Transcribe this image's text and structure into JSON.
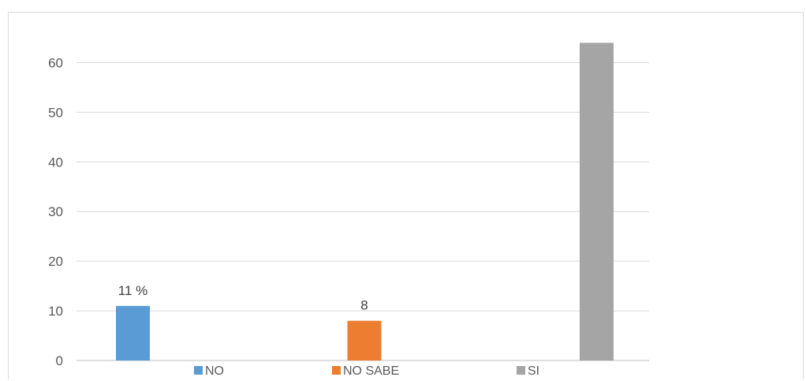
{
  "chart_data": {
    "type": "bar",
    "title": "",
    "xlabel": "",
    "ylabel": "",
    "ylim": [
      0,
      65
    ],
    "yticks": [
      0,
      10,
      20,
      30,
      40,
      50,
      60
    ],
    "grid": true,
    "legend_position": "bottom",
    "series": [
      {
        "name": "NO",
        "value": 11,
        "data_label": "11 %",
        "color": "#5b9bd5"
      },
      {
        "name": "NO SABE",
        "value": 8,
        "data_label": "8",
        "color": "#ed7d31"
      },
      {
        "name": "SI",
        "value": 64,
        "data_label": "",
        "color": "#a5a5a5"
      }
    ]
  }
}
